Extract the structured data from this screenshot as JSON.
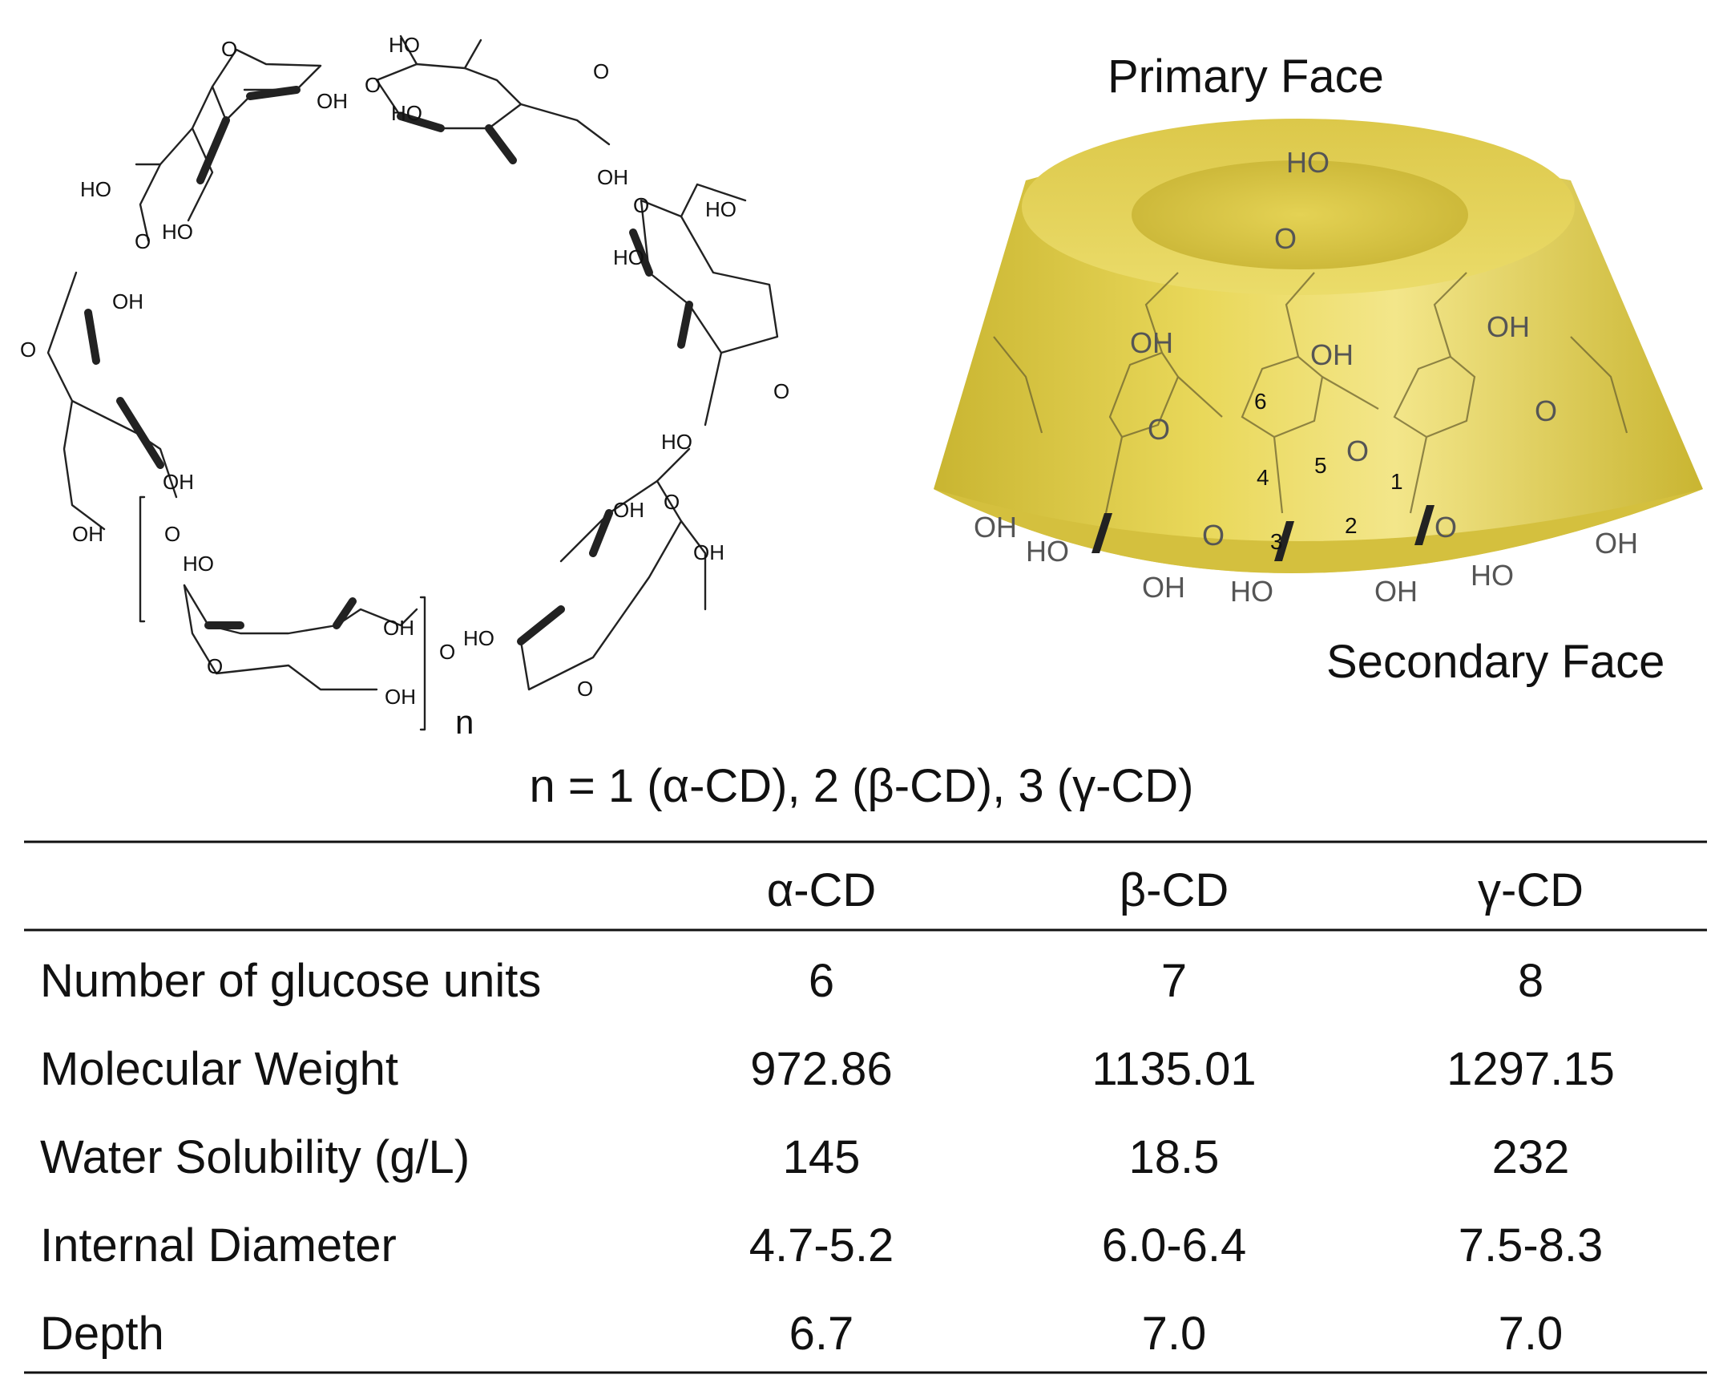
{
  "structure": {
    "labels": {
      "ho": "HO",
      "oh": "OH",
      "o": "O",
      "n": "n"
    }
  },
  "cone": {
    "primary_face": "Primary Face",
    "secondary_face": "Secondary Face",
    "atom_numbers": [
      "1",
      "2",
      "3",
      "4",
      "5",
      "6"
    ],
    "colors": {
      "cone_fill": "#E6D24E",
      "cone_shadow": "#C9B531",
      "cone_light": "#F3E68A"
    }
  },
  "caption": "n = 1 (α-CD), 2 (β-CD), 3 (γ-CD)",
  "table": {
    "columns": [
      "",
      "α-CD",
      "β-CD",
      "γ-CD"
    ],
    "rows": [
      {
        "label": "Number of glucose units",
        "values": [
          "6",
          "7",
          "8"
        ]
      },
      {
        "label": "Molecular Weight",
        "values": [
          "972.86",
          "1135.01",
          "1297.15"
        ]
      },
      {
        "label": "Water Solubility (g/L)",
        "values": [
          "145",
          "18.5",
          "232"
        ]
      },
      {
        "label": "Internal Diameter",
        "values": [
          "4.7-5.2",
          "6.0-6.4",
          "7.5-8.3"
        ]
      },
      {
        "label": "Depth",
        "values": [
          "6.7",
          "7.0",
          "7.0"
        ]
      }
    ]
  }
}
